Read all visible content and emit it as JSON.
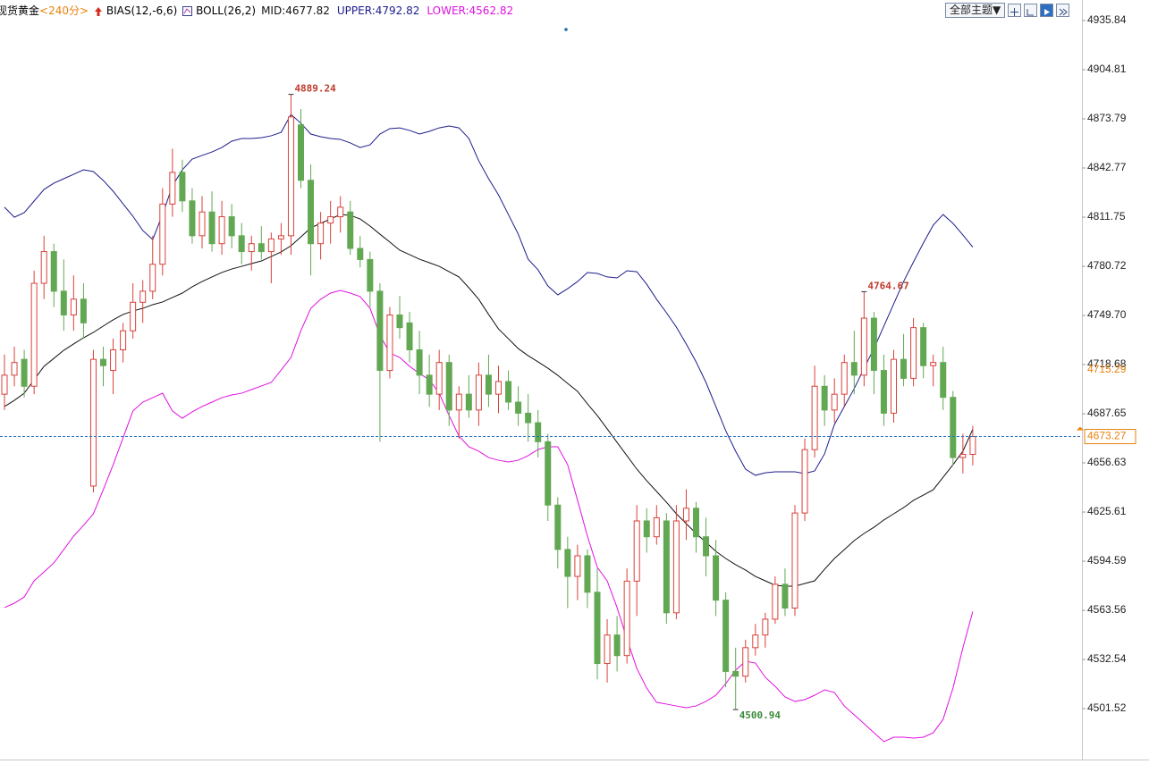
{
  "chart_data": {
    "type": "candlestick",
    "title": "现货黄金",
    "period": "<240分>",
    "indicators": [
      "BIAS(12,-6,6)",
      "BOLL(26,2)"
    ],
    "theme_button": "全部主题▼",
    "up_color": "#d8413a",
    "down_color": "#62a853",
    "ylim": [
      4469.4,
      4948.8
    ],
    "yticks": [
      4935.84,
      4904.81,
      4873.79,
      4842.77,
      4811.75,
      4780.72,
      {
        "value": 4749.7,
        "label": "4749.70"
      },
      4718.68,
      4687.65,
      4656.63,
      4625.61,
      4594.59,
      4563.56,
      4532.54,
      4501.52
    ],
    "last_price": 4673.27,
    "marked_price": 4715.29,
    "annotations": [
      4889.24,
      4764.67,
      4500.94
    ],
    "candles": [
      [
        4700,
        4725,
        4690,
        4712
      ],
      [
        4712,
        4730,
        4705,
        4720
      ],
      [
        4722,
        4728,
        4698,
        4705
      ],
      [
        4705,
        4778,
        4700,
        4770
      ],
      [
        4770,
        4800,
        4760,
        4790
      ],
      [
        4790,
        4795,
        4755,
        4765
      ],
      [
        4765,
        4785,
        4740,
        4750
      ],
      [
        4750,
        4775,
        4740,
        4760
      ],
      [
        4760,
        4770,
        4735,
        4745
      ],
      [
        4642,
        4728,
        4638,
        4722
      ],
      [
        4722,
        4730,
        4705,
        4718
      ],
      [
        4715,
        4735,
        4700,
        4728
      ],
      [
        4728,
        4745,
        4720,
        4740
      ],
      [
        4740,
        4770,
        4735,
        4758
      ],
      [
        4758,
        4772,
        4745,
        4765
      ],
      [
        4765,
        4800,
        4760,
        4782
      ],
      [
        4782,
        4830,
        4775,
        4820
      ],
      [
        4820,
        4855,
        4812,
        4840
      ],
      [
        4840,
        4848,
        4815,
        4822
      ],
      [
        4822,
        4830,
        4795,
        4800
      ],
      [
        4800,
        4825,
        4792,
        4815
      ],
      [
        4815,
        4828,
        4790,
        4795
      ],
      [
        4795,
        4822,
        4788,
        4812
      ],
      [
        4812,
        4820,
        4792,
        4800
      ],
      [
        4800,
        4808,
        4782,
        4790
      ],
      [
        4790,
        4800,
        4778,
        4795
      ],
      [
        4795,
        4806,
        4785,
        4790
      ],
      [
        4790,
        4802,
        4770,
        4798
      ],
      [
        4798,
        4808,
        4788,
        4800
      ],
      [
        4800,
        4889.24,
        4788,
        4875
      ],
      [
        4870,
        4880,
        4830,
        4835
      ],
      [
        4835,
        4845,
        4775,
        4795
      ],
      [
        4795,
        4815,
        4785,
        4808
      ],
      [
        4808,
        4822,
        4795,
        4812
      ],
      [
        4812,
        4825,
        4802,
        4818
      ],
      [
        4815,
        4822,
        4788,
        4792
      ],
      [
        4792,
        4800,
        4780,
        4785
      ],
      [
        4785,
        4790,
        4755,
        4765
      ],
      [
        4765,
        4770,
        4670,
        4715
      ],
      [
        4715,
        4755,
        4710,
        4750
      ],
      [
        4750,
        4762,
        4735,
        4742
      ],
      [
        4745,
        4752,
        4720,
        4728
      ],
      [
        4728,
        4740,
        4700,
        4712
      ],
      [
        4712,
        4725,
        4692,
        4700
      ],
      [
        4700,
        4728,
        4690,
        4720
      ],
      [
        4720,
        4725,
        4680,
        4690
      ],
      [
        4690,
        4705,
        4672,
        4700
      ],
      [
        4700,
        4712,
        4685,
        4690
      ],
      [
        4690,
        4720,
        4680,
        4712
      ],
      [
        4712,
        4725,
        4692,
        4700
      ],
      [
        4700,
        4718,
        4688,
        4708
      ],
      [
        4708,
        4715,
        4690,
        4695
      ],
      [
        4695,
        4705,
        4680,
        4688
      ],
      [
        4688,
        4700,
        4670,
        4682
      ],
      [
        4682,
        4690,
        4660,
        4670
      ],
      [
        4670,
        4675,
        4620,
        4630
      ],
      [
        4630,
        4635,
        4590,
        4602
      ],
      [
        4602,
        4610,
        4565,
        4585
      ],
      [
        4585,
        4605,
        4570,
        4598
      ],
      [
        4598,
        4602,
        4565,
        4575
      ],
      [
        4575,
        4590,
        4520,
        4530
      ],
      [
        4530,
        4558,
        4518,
        4548
      ],
      [
        4548,
        4560,
        4525,
        4535
      ],
      [
        4535,
        4590,
        4530,
        4582
      ],
      [
        4582,
        4630,
        4560,
        4620
      ],
      [
        4620,
        4628,
        4600,
        4610
      ],
      [
        4610,
        4630,
        4605,
        4622
      ],
      [
        4620,
        4625,
        4555,
        4562
      ],
      [
        4562,
        4630,
        4558,
        4620
      ],
      [
        4620,
        4640,
        4608,
        4628
      ],
      [
        4628,
        4632,
        4600,
        4610
      ],
      [
        4610,
        4622,
        4585,
        4598
      ],
      [
        4598,
        4608,
        4560,
        4570
      ],
      [
        4570,
        4575,
        4515,
        4525
      ],
      [
        4525,
        4540,
        4500.94,
        4522
      ],
      [
        4522,
        4545,
        4518,
        4540
      ],
      [
        4540,
        4555,
        4535,
        4548
      ],
      [
        4548,
        4562,
        4540,
        4558
      ],
      [
        4558,
        4585,
        4555,
        4580
      ],
      [
        4580,
        4590,
        4560,
        4565
      ],
      [
        4565,
        4630,
        4560,
        4625
      ],
      [
        4625,
        4672,
        4620,
        4665
      ],
      [
        4665,
        4718,
        4660,
        4705
      ],
      [
        4705,
        4712,
        4680,
        4690
      ],
      [
        4690,
        4710,
        4682,
        4700
      ],
      [
        4700,
        4725,
        4692,
        4720
      ],
      [
        4720,
        4740,
        4700,
        4712
      ],
      [
        4712,
        4764.67,
        4705,
        4748
      ],
      [
        4748,
        4752,
        4700,
        4715
      ],
      [
        4715,
        4725,
        4680,
        4688
      ],
      [
        4688,
        4728,
        4682,
        4722
      ],
      [
        4722,
        4738,
        4705,
        4710
      ],
      [
        4710,
        4748,
        4705,
        4742
      ],
      [
        4742,
        4745,
        4710,
        4718
      ],
      [
        4718,
        4725,
        4705,
        4720
      ],
      [
        4720,
        4730,
        4690,
        4698
      ],
      [
        4698,
        4702,
        4655,
        4660
      ],
      [
        4660,
        4675,
        4650,
        4662
      ],
      [
        4662,
        4680,
        4655,
        4673.27
      ]
    ],
    "series": [
      {
        "name": "MID:4677.82",
        "color": "#111111",
        "values": [
          4692.2,
          4696.1,
          4700.6,
          4709.1,
          4717.6,
          4722.6,
          4727.7,
          4731.7,
          4735.6,
          4739,
          4743,
          4746.9,
          4750.3,
          4752.5,
          4754.2,
          4756.5,
          4758.2,
          4761,
          4763.8,
          4767.8,
          4771.1,
          4774,
          4776.8,
          4779,
          4780.7,
          4782.4,
          4784.1,
          4786.9,
          4789.8,
          4793.7,
          4799.3,
          4805,
          4807.8,
          4810.6,
          4813.4,
          4812.9,
          4810.6,
          4806.1,
          4801,
          4796,
          4790.9,
          4788.1,
          4785.2,
          4783,
          4780.7,
          4777.3,
          4774,
          4767.2,
          4759.9,
          4750.3,
          4741.2,
          4735,
          4728.8,
          4724.3,
          4720.4,
          4716.4,
          4711.9,
          4706.8,
          4701.8,
          4693.9,
          4686.5,
          4678.1,
          4669.6,
          4661.2,
          4652.7,
          4645.4,
          4638.6,
          4631.8,
          4624.5,
          4618.3,
          4612.1,
          4606.5,
          4600.8,
          4596.3,
          4592.4,
          4589,
          4585,
          4582.2,
          4579.4,
          4578.8,
          4578.8,
          4580.5,
          4582.2,
          4589.5,
          4596.3,
          4601.9,
          4607.6,
          4612.1,
          4616,
          4620.6,
          4624.5,
          4628.4,
          4633,
          4636.3,
          4639.7,
          4647.6,
          4655.5,
          4664,
          4677.82
        ]
      },
      {
        "name": "UPPER:4792.82",
        "color": "#1c1c8c",
        "values": [
          4818,
          4811.7,
          4814.6,
          4821.9,
          4829.2,
          4833.2,
          4836,
          4838.8,
          4841.6,
          4840.5,
          4834.9,
          4828.1,
          4820.2,
          4812.3,
          4803.3,
          4797.6,
          4813.4,
          4831.5,
          4841.6,
          4848.4,
          4850.7,
          4852.9,
          4855.7,
          4859.7,
          4861.4,
          4861.4,
          4861.9,
          4863.1,
          4865.3,
          4876.6,
          4871,
          4864.2,
          4862.5,
          4861.4,
          4860.8,
          4858.6,
          4855.7,
          4857.4,
          4864.2,
          4867.6,
          4868.1,
          4866.5,
          4864.2,
          4865.9,
          4868.1,
          4869.3,
          4868.1,
          4861.4,
          4847.3,
          4836,
          4825.8,
          4813.4,
          4801,
          4785.2,
          4778.5,
          4768.3,
          4762.7,
          4766.6,
          4771.1,
          4776.8,
          4776.2,
          4774,
          4773.4,
          4777.9,
          4777.3,
          4769.4,
          4759.9,
          4751.4,
          4742.4,
          4731.7,
          4720.4,
          4707.4,
          4692.2,
          4676.9,
          4664,
          4652.7,
          4648.8,
          4650.4,
          4651,
          4651,
          4651,
          4649.9,
          4651.6,
          4662.3,
          4680.9,
          4692.2,
          4703.5,
          4716.4,
          4728.8,
          4742.9,
          4757,
          4771.1,
          4783.5,
          4795.4,
          4806.7,
          4813.4,
          4807.8,
          4800.5,
          4792.82
        ]
      },
      {
        "name": "LOWER:4562.82",
        "color": "#e011e0",
        "values": [
          4565.3,
          4568.1,
          4572,
          4582.2,
          4587.8,
          4593.5,
          4601.9,
          4610.4,
          4617.2,
          4624.5,
          4639.7,
          4655.5,
          4672.4,
          4689.4,
          4695,
          4697.8,
          4700.6,
          4689.4,
          4684.8,
          4688.8,
          4692.2,
          4695,
          4697.8,
          4699.5,
          4700.6,
          4702.9,
          4705.2,
          4707.4,
          4715.3,
          4723.2,
          4740.1,
          4754.2,
          4759.9,
          4763.8,
          4765.5,
          4763.8,
          4761.6,
          4754.2,
          4737.3,
          4726,
          4723.2,
          4717.6,
          4713,
          4709.1,
          4700.6,
          4686.5,
          4673.6,
          4666.8,
          4664,
          4660,
          4658.3,
          4657.2,
          4658.3,
          4661.2,
          4665.1,
          4666.8,
          4666.8,
          4655.5,
          4633,
          4610.4,
          4590.7,
          4582.2,
          4565.3,
          4545.5,
          4526.9,
          4514.5,
          4505.5,
          4504.4,
          4503.2,
          4502.1,
          4503.2,
          4506.1,
          4510,
          4517.3,
          4525.8,
          4531.4,
          4530.3,
          4521.3,
          4515.6,
          4508.9,
          4506.1,
          4507.2,
          4510,
          4513.4,
          4511.7,
          4503.2,
          4497.6,
          4492,
          4486.3,
          4480.7,
          4483.5,
          4483.5,
          4482.9,
          4483.5,
          4486.3,
          4494.8,
          4514.5,
          4539.9,
          4562.82
        ]
      }
    ]
  }
}
